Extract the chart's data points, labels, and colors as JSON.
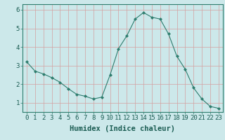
{
  "x": [
    0,
    1,
    2,
    3,
    4,
    5,
    6,
    7,
    8,
    9,
    10,
    11,
    12,
    13,
    14,
    15,
    16,
    17,
    18,
    19,
    20,
    21,
    22,
    23
  ],
  "y": [
    3.2,
    2.7,
    2.55,
    2.35,
    2.1,
    1.75,
    1.45,
    1.35,
    1.2,
    1.3,
    2.5,
    3.9,
    4.6,
    5.5,
    5.85,
    5.6,
    5.5,
    4.7,
    3.5,
    2.8,
    1.8,
    1.2,
    0.8,
    0.7
  ],
  "line_color": "#2e7d6e",
  "marker": "D",
  "marker_size": 2.0,
  "bg_color": "#cce8ea",
  "grid_color_major": "#b8d5d7",
  "grid_color_minor": "#daeef0",
  "xlabel": "Humidex (Indice chaleur)",
  "xlabel_fontsize": 7.5,
  "tick_fontsize": 6.5,
  "ylim": [
    0.5,
    6.3
  ],
  "xlim": [
    -0.5,
    23.5
  ],
  "yticks": [
    1,
    2,
    3,
    4,
    5,
    6
  ],
  "xticks": [
    0,
    1,
    2,
    3,
    4,
    5,
    6,
    7,
    8,
    9,
    10,
    11,
    12,
    13,
    14,
    15,
    16,
    17,
    18,
    19,
    20,
    21,
    22,
    23
  ]
}
